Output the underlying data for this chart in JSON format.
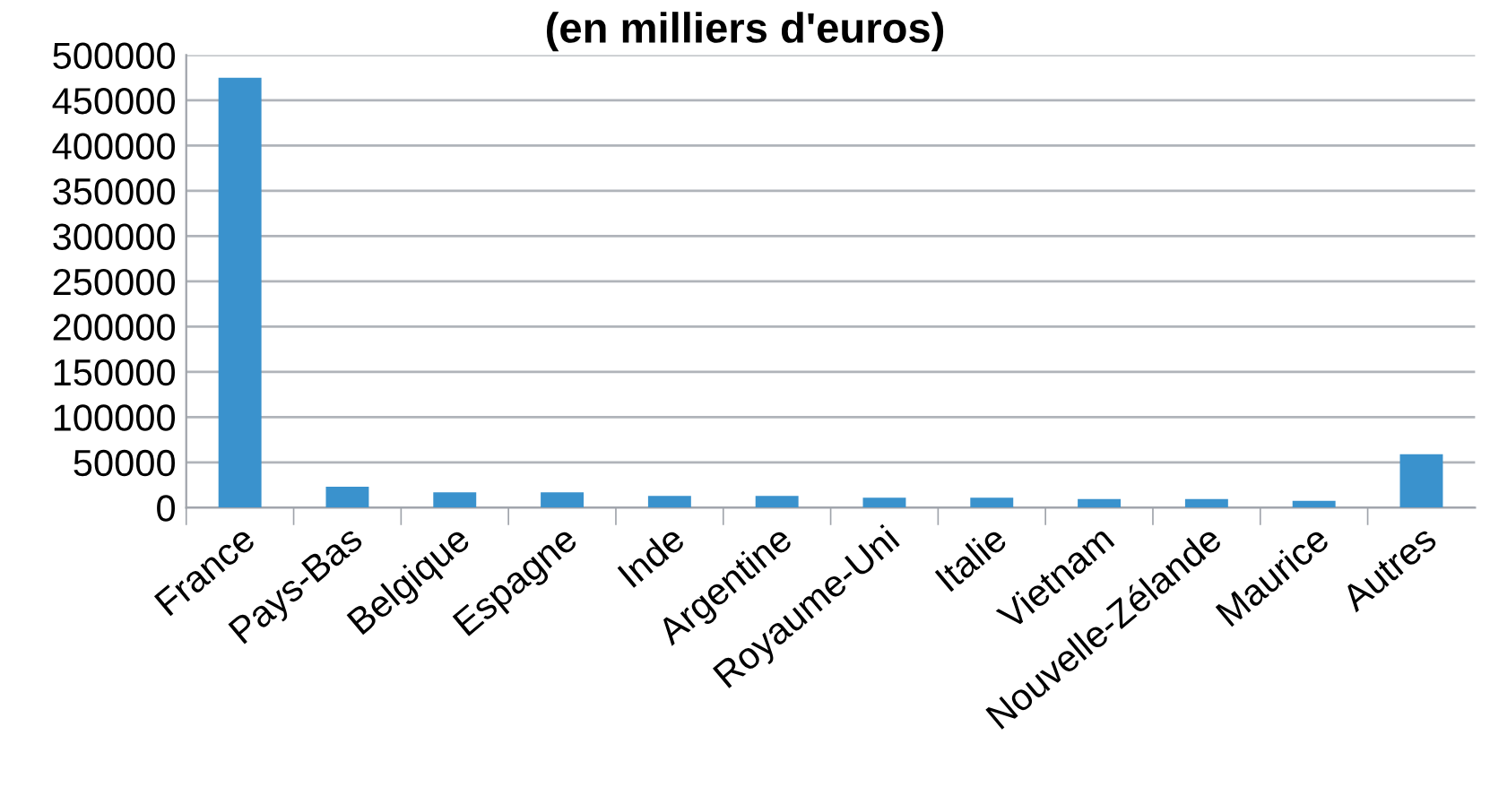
{
  "chart_data": {
    "type": "bar",
    "title": "(en milliers d'euros)",
    "categories": [
      "France",
      "Pays-Bas",
      "Belgique",
      "Espagne",
      "Inde",
      "Argentine",
      "Royaume-Uni",
      "Italie",
      "Vietnam",
      "Nouvelle-Zélande",
      "Maurice",
      "Autres"
    ],
    "values": [
      475000,
      23000,
      17000,
      17000,
      13000,
      13000,
      11000,
      11000,
      9500,
      9500,
      7500,
      59000
    ],
    "color": "#3a92cd",
    "ylim": [
      0,
      500000
    ],
    "yticks": [
      0,
      50000,
      100000,
      150000,
      200000,
      250000,
      300000,
      350000,
      400000,
      450000,
      500000
    ],
    "grid": "y",
    "legend": false
  }
}
